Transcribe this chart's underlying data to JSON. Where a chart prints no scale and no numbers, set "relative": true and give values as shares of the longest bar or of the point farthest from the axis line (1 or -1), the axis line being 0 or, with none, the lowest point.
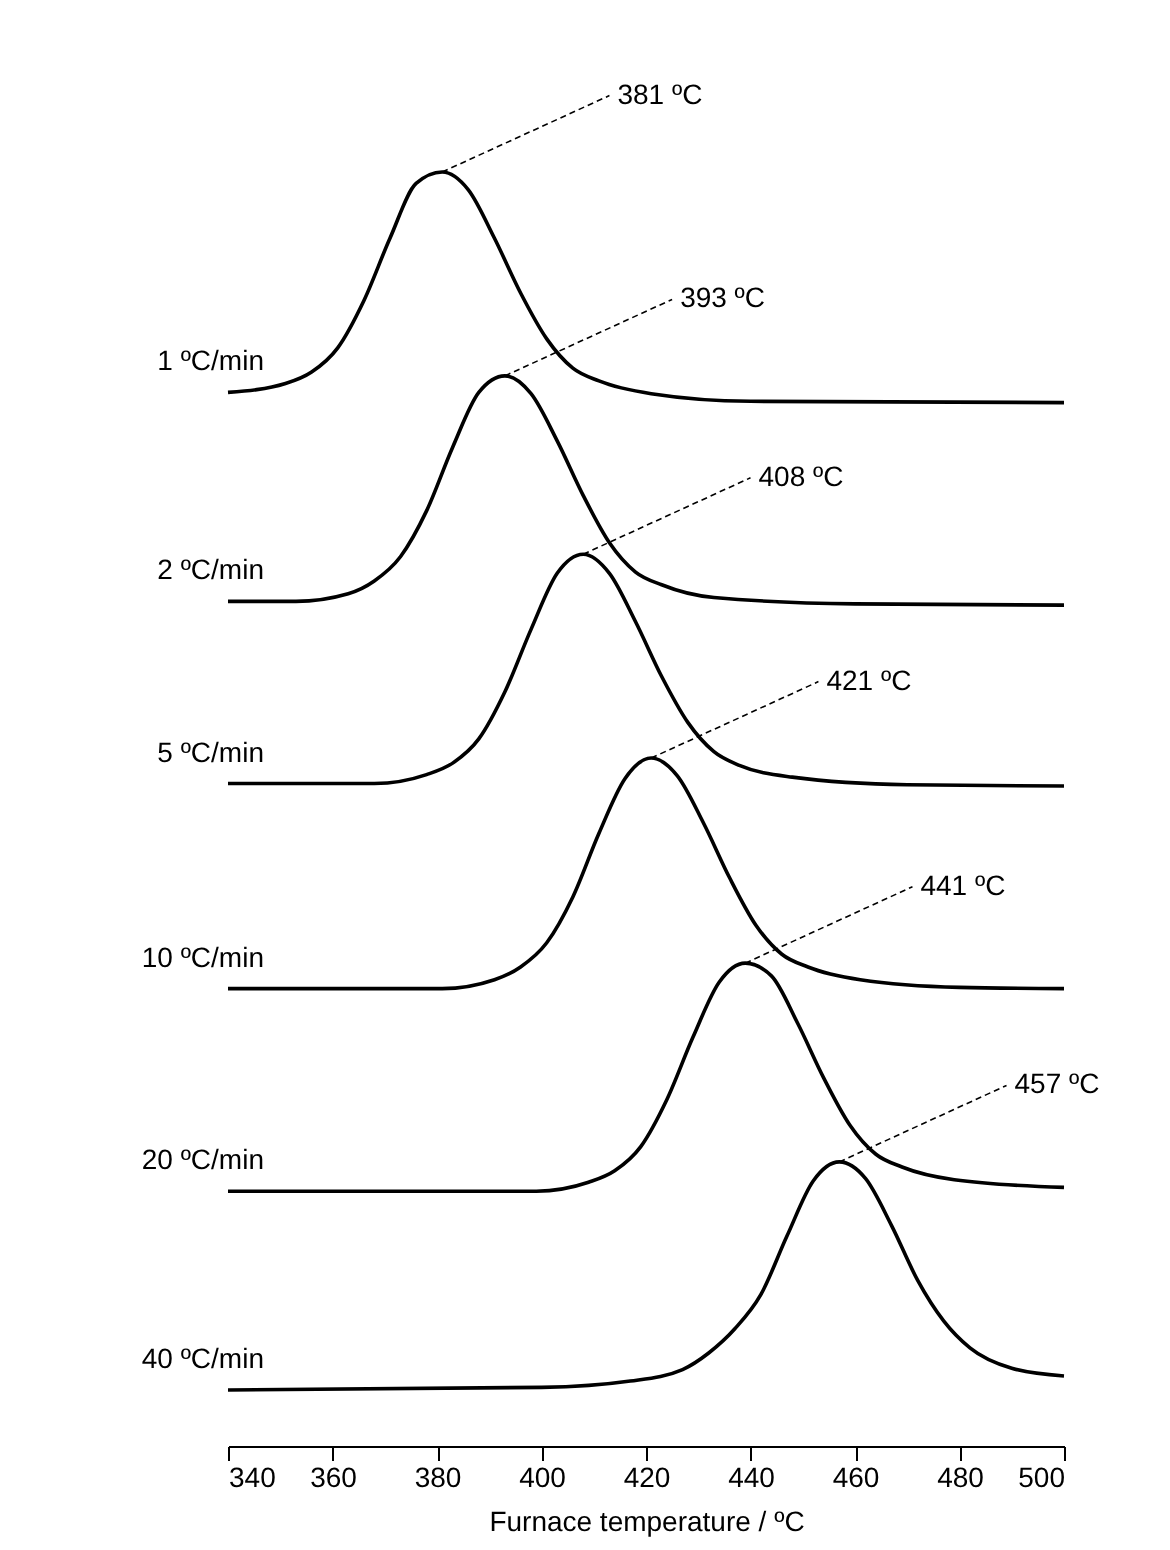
{
  "chart_data": {
    "type": "line",
    "relative": true,
    "xlabel": "Furnace temperature / ºC",
    "xlim": [
      340,
      500
    ],
    "xticks": [
      340,
      360,
      380,
      400,
      420,
      440,
      460,
      480,
      500
    ],
    "legend": false,
    "grid": false,
    "marker": "none",
    "series": [
      {
        "name": "1 ºC/min",
        "color": "#000000",
        "x": [
          340,
          351,
          356,
          361,
          366,
          371,
          376,
          381,
          386,
          391,
          396,
          401,
          406,
          411,
          421,
          440,
          500
        ],
        "values": [
          0.827,
          0.834,
          0.843,
          0.862,
          0.899,
          0.948,
          0.991,
          1.0,
          0.986,
          0.948,
          0.905,
          0.869,
          0.846,
          0.836,
          0.826,
          0.82,
          0.819
        ]
      },
      {
        "name": "2 ºC/min",
        "color": "#000000",
        "x": [
          340,
          353,
          363,
          368,
          373,
          378,
          383,
          388,
          393,
          398,
          403,
          408,
          413,
          418,
          423,
          433,
          460,
          500
        ],
        "values": [
          0.663,
          0.663,
          0.669,
          0.679,
          0.698,
          0.734,
          0.784,
          0.827,
          0.84,
          0.826,
          0.789,
          0.746,
          0.709,
          0.686,
          0.676,
          0.666,
          0.661,
          0.66
        ]
      },
      {
        "name": "5 ºC/min",
        "color": "#000000",
        "x": [
          340,
          368,
          378,
          383,
          388,
          393,
          398,
          403,
          408,
          413,
          418,
          423,
          428,
          433,
          438,
          448,
          470,
          500
        ],
        "values": [
          0.52,
          0.52,
          0.527,
          0.536,
          0.555,
          0.592,
          0.641,
          0.685,
          0.7,
          0.685,
          0.647,
          0.604,
          0.568,
          0.545,
          0.534,
          0.525,
          0.519,
          0.518
        ]
      },
      {
        "name": "10 ºC/min",
        "color": "#000000",
        "x": [
          340,
          381,
          391,
          396,
          401,
          406,
          411,
          416,
          421,
          426,
          431,
          436,
          441,
          446,
          451,
          461,
          480,
          500
        ],
        "values": [
          0.359,
          0.359,
          0.366,
          0.376,
          0.395,
          0.431,
          0.481,
          0.524,
          0.54,
          0.526,
          0.489,
          0.446,
          0.409,
          0.386,
          0.376,
          0.366,
          0.36,
          0.359
        ]
      },
      {
        "name": "20 ºC/min",
        "color": "#000000",
        "x": [
          340,
          399,
          409,
          414,
          419,
          424,
          429,
          434,
          439,
          444,
          449,
          454,
          459,
          464,
          469,
          479,
          500
        ],
        "values": [
          0.2,
          0.2,
          0.207,
          0.216,
          0.235,
          0.272,
          0.321,
          0.364,
          0.379,
          0.369,
          0.332,
          0.289,
          0.252,
          0.229,
          0.219,
          0.209,
          0.203
        ]
      },
      {
        "name": "40 ºC/min",
        "color": "#000000",
        "x": [
          340,
          400,
          417,
          427,
          432,
          437,
          442,
          447,
          452,
          457,
          462,
          467,
          472,
          477,
          482,
          490,
          500
        ],
        "values": [
          0.044,
          0.046,
          0.051,
          0.06,
          0.073,
          0.092,
          0.119,
          0.165,
          0.208,
          0.223,
          0.21,
          0.173,
          0.13,
          0.098,
          0.077,
          0.061,
          0.055
        ]
      }
    ],
    "annotations": [
      {
        "text": "381 ºC",
        "x": 381,
        "y": 1.0
      },
      {
        "text": "393 ºC",
        "x": 393,
        "y": 0.84
      },
      {
        "text": "408 ºC",
        "x": 408,
        "y": 0.7
      },
      {
        "text": "421 ºC",
        "x": 421,
        "y": 0.54
      },
      {
        "text": "441 ºC",
        "x": 439,
        "y": 0.379
      },
      {
        "text": "457 ºC",
        "x": 457,
        "y": 0.223
      }
    ]
  }
}
